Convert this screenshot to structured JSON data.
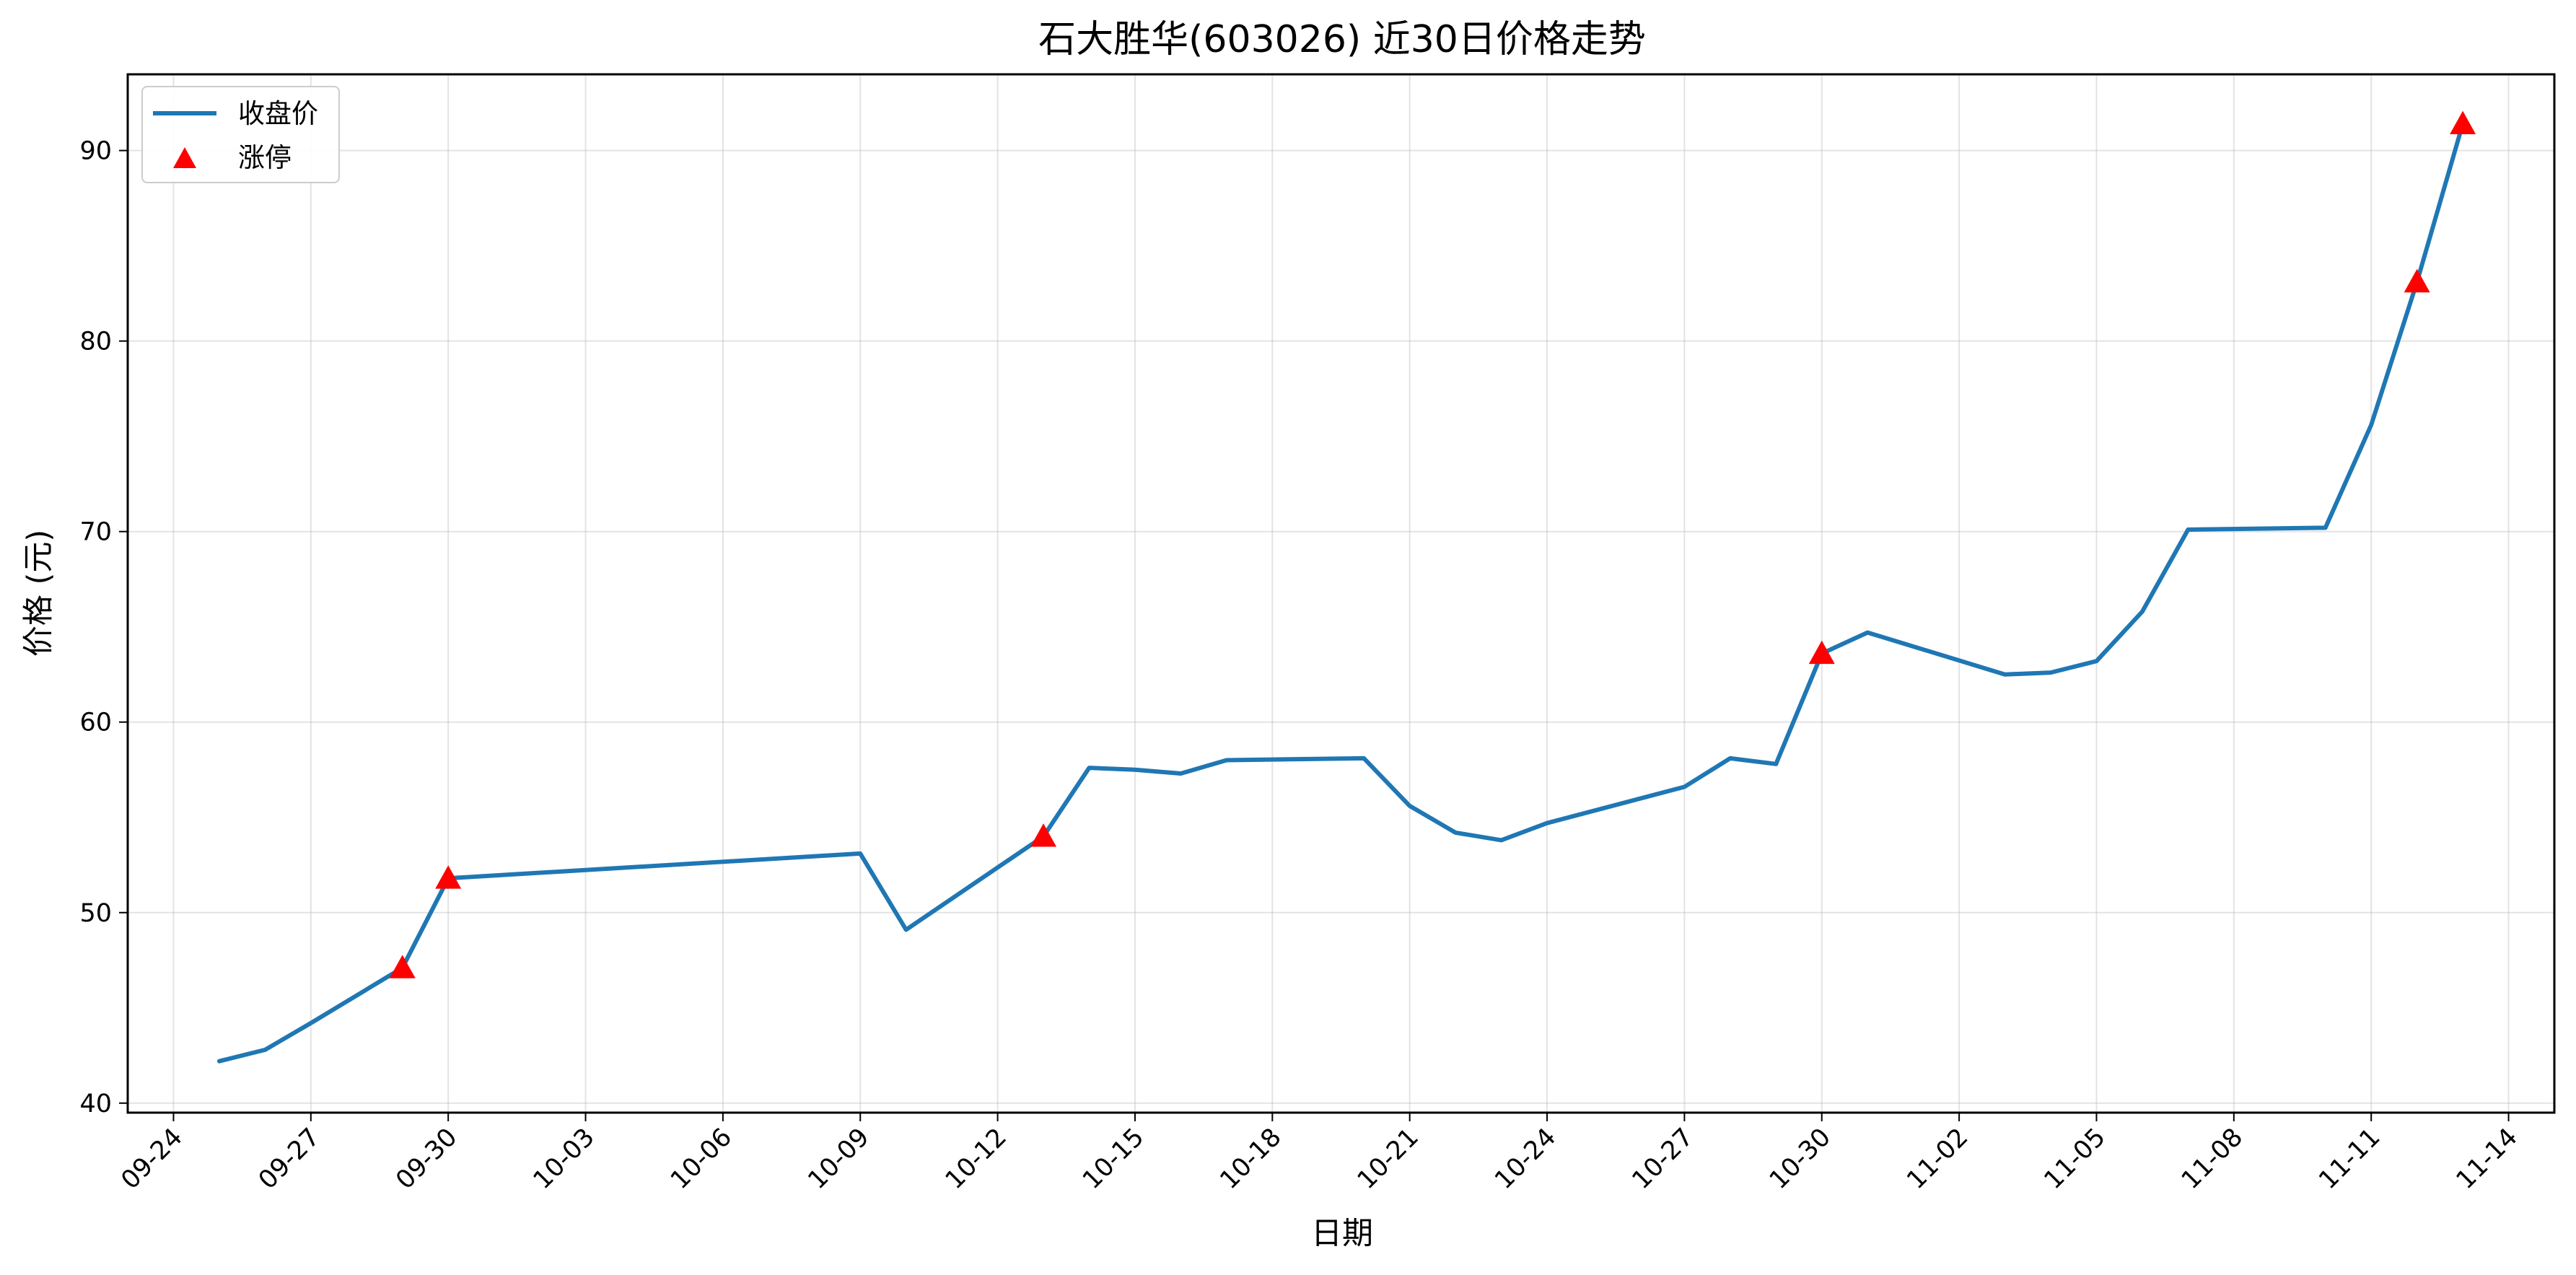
{
  "chart_data": {
    "type": "line",
    "title": "石大胜华(603026) 近30日价格走势",
    "xlabel": "日期",
    "ylabel": "价格 (元)",
    "grid": true,
    "legend_position": "top-left",
    "x_tick_labels": [
      "09-24",
      "09-27",
      "09-30",
      "10-03",
      "10-06",
      "10-09",
      "10-12",
      "10-15",
      "10-18",
      "10-21",
      "10-24",
      "10-27",
      "10-30",
      "11-02",
      "11-05",
      "11-08",
      "11-11",
      "11-14"
    ],
    "y_ticks": [
      40,
      50,
      60,
      70,
      80,
      90
    ],
    "ylim": [
      39.5,
      94
    ],
    "xlim": [
      "2024-09-23",
      "2024-11-15"
    ],
    "series": [
      {
        "name": "收盘价",
        "color": "#1f77b4",
        "points": [
          {
            "x": "2024-09-25",
            "y": 42.2
          },
          {
            "x": "2024-09-26",
            "y": 42.8
          },
          {
            "x": "2024-09-27",
            "y": 44.2
          },
          {
            "x": "2024-09-29",
            "y": 47.1
          },
          {
            "x": "2024-09-30",
            "y": 51.8
          },
          {
            "x": "2024-10-09",
            "y": 53.1
          },
          {
            "x": "2024-10-10",
            "y": 49.1
          },
          {
            "x": "2024-10-13",
            "y": 54.0
          },
          {
            "x": "2024-10-14",
            "y": 57.6
          },
          {
            "x": "2024-10-15",
            "y": 57.5
          },
          {
            "x": "2024-10-16",
            "y": 57.3
          },
          {
            "x": "2024-10-17",
            "y": 58.0
          },
          {
            "x": "2024-10-20",
            "y": 58.1
          },
          {
            "x": "2024-10-21",
            "y": 55.6
          },
          {
            "x": "2024-10-22",
            "y": 54.2
          },
          {
            "x": "2024-10-23",
            "y": 53.8
          },
          {
            "x": "2024-10-24",
            "y": 54.7
          },
          {
            "x": "2024-10-27",
            "y": 56.6
          },
          {
            "x": "2024-10-28",
            "y": 58.1
          },
          {
            "x": "2024-10-29",
            "y": 57.8
          },
          {
            "x": "2024-10-30",
            "y": 63.6
          },
          {
            "x": "2024-10-31",
            "y": 64.7
          },
          {
            "x": "2024-11-03",
            "y": 62.5
          },
          {
            "x": "2024-11-04",
            "y": 62.6
          },
          {
            "x": "2024-11-05",
            "y": 63.2
          },
          {
            "x": "2024-11-06",
            "y": 65.8
          },
          {
            "x": "2024-11-07",
            "y": 70.1
          },
          {
            "x": "2024-11-10",
            "y": 70.2
          },
          {
            "x": "2024-11-11",
            "y": 75.6
          },
          {
            "x": "2024-11-12",
            "y": 83.1
          },
          {
            "x": "2024-11-13",
            "y": 91.4
          }
        ]
      },
      {
        "name": "涨停",
        "color": "#ff0000",
        "marker": "triangle",
        "points": [
          {
            "x": "2024-09-29",
            "y": 47.1
          },
          {
            "x": "2024-09-30",
            "y": 51.8
          },
          {
            "x": "2024-10-13",
            "y": 54.0
          },
          {
            "x": "2024-10-30",
            "y": 63.6
          },
          {
            "x": "2024-11-12",
            "y": 83.1
          },
          {
            "x": "2024-11-13",
            "y": 91.4
          }
        ]
      }
    ]
  }
}
